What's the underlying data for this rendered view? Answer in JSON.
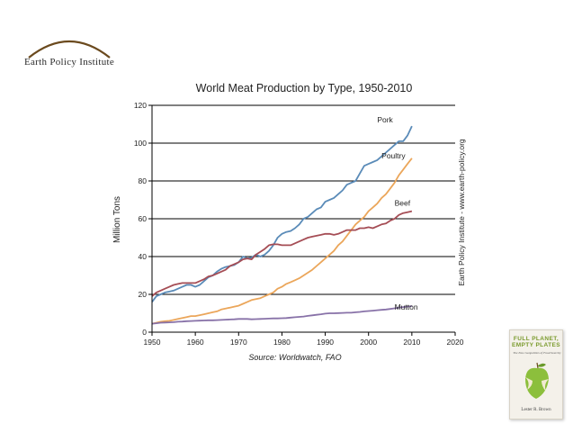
{
  "logo": {
    "text": "Earth Policy Institute"
  },
  "book": {
    "title_line1": "FULL PLANET,",
    "title_line2": "EMPTY PLATES",
    "subtitle": "The New Geopolitics of Food Scarcity",
    "author": "Lester R. Brown"
  },
  "colors": {
    "pork": "#5a8bb8",
    "poultry": "#eba65a",
    "beef": "#a54d55",
    "mutton": "#8872a8"
  },
  "chart_data": {
    "type": "line",
    "title": "World Meat Production by Type, 1950-2010",
    "ylabel": "Million Tons",
    "xlabel": "",
    "source": "Source: Worldwatch, FAO",
    "side_label": "Earth Policy Institute - www.earth-policy.org",
    "xlim": [
      1950,
      2020
    ],
    "ylim": [
      0,
      120
    ],
    "xticks": [
      1950,
      1960,
      1970,
      1980,
      1990,
      2000,
      2010,
      2020
    ],
    "yticks": [
      0,
      20,
      40,
      60,
      80,
      100,
      120
    ],
    "grid": "horizontal",
    "x": [
      1950,
      1951,
      1952,
      1953,
      1954,
      1955,
      1956,
      1957,
      1958,
      1959,
      1960,
      1961,
      1962,
      1963,
      1964,
      1965,
      1966,
      1967,
      1968,
      1969,
      1970,
      1971,
      1972,
      1973,
      1974,
      1975,
      1976,
      1977,
      1978,
      1979,
      1980,
      1981,
      1982,
      1983,
      1984,
      1985,
      1986,
      1987,
      1988,
      1989,
      1990,
      1991,
      1992,
      1993,
      1994,
      1995,
      1996,
      1997,
      1998,
      1999,
      2000,
      2001,
      2002,
      2003,
      2004,
      2005,
      2006,
      2007,
      2008,
      2009,
      2010
    ],
    "series": [
      {
        "name": "Pork",
        "values": [
          16,
          19,
          20,
          21,
          21.5,
          22,
          23,
          24,
          25,
          25,
          24,
          25,
          27,
          29,
          30,
          32,
          33.5,
          34.5,
          35,
          35.5,
          37,
          40,
          39,
          39.5,
          41,
          40,
          41,
          43,
          46,
          50,
          52,
          53,
          53.5,
          55,
          57,
          60,
          61,
          63,
          65,
          66,
          69,
          70,
          71,
          73,
          75,
          78,
          79,
          80,
          84,
          88,
          89,
          90,
          91,
          93,
          95,
          97,
          99,
          101,
          101,
          104,
          109
        ]
      },
      {
        "name": "Poultry",
        "values": [
          4.5,
          5,
          5.5,
          5.8,
          6,
          6.5,
          7,
          7.5,
          8,
          8.5,
          8.5,
          9,
          9.5,
          10,
          10.5,
          11,
          12,
          12.5,
          13,
          13.5,
          14,
          15,
          16,
          17,
          17.5,
          18,
          19,
          20,
          21,
          23,
          24,
          25.5,
          26.5,
          27.5,
          28.5,
          30,
          31.5,
          33,
          35,
          37,
          39,
          41,
          43,
          46,
          48,
          51,
          54,
          57,
          59,
          61,
          64,
          66,
          68,
          71,
          73,
          76,
          79,
          83,
          86,
          89,
          92
        ]
      },
      {
        "name": "Beef",
        "values": [
          19,
          21,
          22,
          23,
          24,
          25,
          25.5,
          26,
          26,
          26,
          26,
          27,
          28,
          29.5,
          30,
          31,
          32,
          33,
          35,
          36,
          37,
          38.5,
          39,
          38.5,
          41,
          42.5,
          44,
          46,
          46.5,
          46.5,
          46,
          46,
          46,
          47,
          48,
          49,
          50,
          50.5,
          51,
          51.5,
          52,
          52,
          51.5,
          52,
          53,
          54,
          54,
          54,
          55,
          55,
          55.5,
          55,
          56,
          57,
          57.5,
          59,
          60,
          62,
          63,
          63.5,
          64
        ]
      },
      {
        "name": "Mutton",
        "values": [
          4.5,
          4.7,
          5,
          5.1,
          5.2,
          5.3,
          5.5,
          5.6,
          5.8,
          5.9,
          6,
          6.1,
          6.2,
          6.3,
          6.3,
          6.4,
          6.5,
          6.6,
          6.7,
          6.8,
          7,
          7,
          7,
          6.8,
          6.9,
          7,
          7.1,
          7.2,
          7.3,
          7.3,
          7.4,
          7.5,
          7.7,
          7.9,
          8.1,
          8.3,
          8.6,
          8.9,
          9.2,
          9.5,
          9.8,
          10,
          10,
          10.1,
          10.2,
          10.3,
          10.3,
          10.5,
          10.7,
          11,
          11.2,
          11.4,
          11.6,
          11.8,
          12,
          12.3,
          12.6,
          13,
          13.3,
          13.5,
          13.8
        ]
      }
    ],
    "annotations": [
      {
        "text": "Pork",
        "x": 2002,
        "y": 111
      },
      {
        "text": "Poultry",
        "x": 2003,
        "y": 92
      },
      {
        "text": "Beef",
        "x": 2006,
        "y": 67
      },
      {
        "text": "Mutton",
        "x": 2006,
        "y": 12
      }
    ]
  }
}
